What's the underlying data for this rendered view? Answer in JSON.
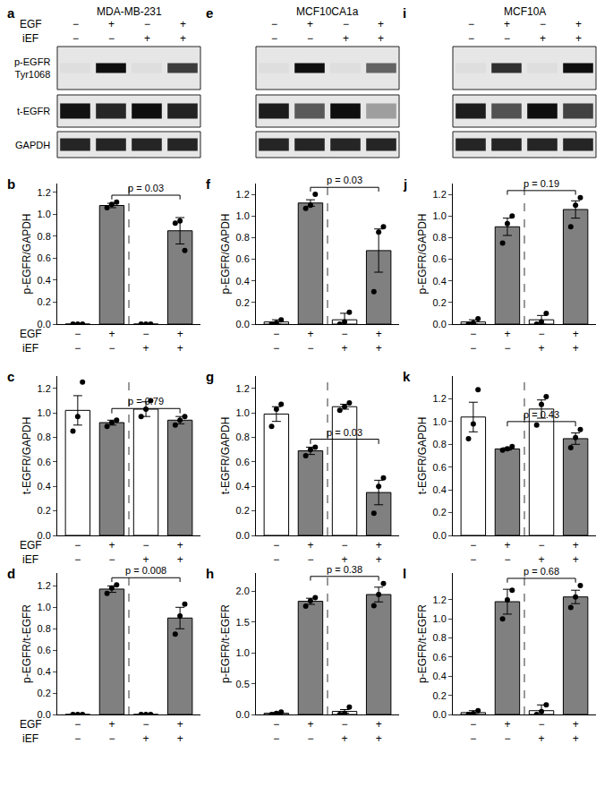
{
  "blots": [
    {
      "panel": "a",
      "title": "MDA-MB-231",
      "conditions": [
        {
          "label": "EGF",
          "values": [
            "−",
            "+",
            "−",
            "+"
          ]
        },
        {
          "label": "iEF",
          "values": [
            "−",
            "−",
            "+",
            "+"
          ]
        }
      ],
      "rows": [
        {
          "label": [
            "p-EGFR",
            "Tyr1068"
          ]
        },
        {
          "label": [
            "t-EGFR"
          ]
        },
        {
          "label": [
            "GAPDH"
          ]
        }
      ]
    },
    {
      "panel": "e",
      "title": "MCF10CA1a",
      "conditions": [
        {
          "values": [
            "−",
            "+",
            "−",
            "+"
          ]
        },
        {
          "values": [
            "−",
            "−",
            "+",
            "+"
          ]
        }
      ],
      "rows": [
        {},
        {},
        {}
      ]
    },
    {
      "panel": "i",
      "title": "MCF10A",
      "conditions": [
        {
          "values": [
            "−",
            "+",
            "−",
            "+"
          ]
        },
        {
          "values": [
            "−",
            "−",
            "+",
            "+"
          ]
        }
      ],
      "rows": [
        {},
        {},
        {}
      ]
    }
  ],
  "chart_data": [
    {
      "type": "bar",
      "panel": "b",
      "y_label": "p-EGFR/GAPDH",
      "x_rows": [
        {
          "label": "EGF",
          "values": [
            "−",
            "+",
            "−",
            "+"
          ]
        },
        {
          "label": "iEF",
          "values": [
            "−",
            "−",
            "+",
            "+"
          ]
        }
      ],
      "values": [
        0,
        1.08,
        0,
        0.85
      ],
      "errors": [
        0,
        0.02,
        0,
        0.12
      ],
      "points": [
        [
          0,
          0,
          0
        ],
        [
          1.06,
          1.09,
          1.11
        ],
        [
          0,
          0,
          0
        ],
        [
          0.92,
          0.94,
          0.67
        ]
      ],
      "colors": [
        "#ffffff",
        "#808080",
        "#ffffff",
        "#808080"
      ],
      "ylim": [
        0,
        1.28
      ],
      "yticks": [
        {
          "value": 0,
          "label": "0.0"
        },
        0.2,
        0.4,
        0.6,
        0.8,
        {
          "value": 1,
          "label": "1.0"
        },
        1.2
      ],
      "comparison": {
        "bars": [
          1,
          3
        ],
        "label": "p = 0.03"
      }
    },
    {
      "type": "bar",
      "panel": "c",
      "y_label": "t-EGFR/GAPDH",
      "x_rows": [
        {
          "label": "EGF",
          "values": [
            "−",
            "+",
            "−",
            "+"
          ]
        },
        {
          "label": "iEF",
          "values": [
            "−",
            "−",
            "+",
            "+"
          ]
        }
      ],
      "values": [
        1.02,
        0.92,
        1.03,
        0.94
      ],
      "errors": [
        0.12,
        0.02,
        0.06,
        0.03
      ],
      "points": [
        [
          0.85,
          0.97,
          1.25
        ],
        [
          0.89,
          0.92,
          0.94
        ],
        [
          0.97,
          1.03,
          1.1
        ],
        [
          0.9,
          0.94,
          0.97
        ]
      ],
      "colors": [
        "#ffffff",
        "#808080",
        "#ffffff",
        "#808080"
      ],
      "ylim": [
        0,
        1.3
      ],
      "yticks": [
        {
          "value": 0,
          "label": "0.0"
        },
        0.2,
        0.4,
        0.6,
        0.8,
        {
          "value": 1,
          "label": "1.0"
        },
        1.2
      ],
      "comparison": {
        "bars": [
          1,
          3
        ],
        "label": "p = 0.79"
      }
    },
    {
      "type": "bar",
      "panel": "d",
      "y_label": "p-EGFR/t-EGFR",
      "x_rows": [
        {
          "label": "EGF",
          "values": [
            "−",
            "+",
            "−",
            "+"
          ]
        },
        {
          "label": "iEF",
          "values": [
            "−",
            "−",
            "+",
            "+"
          ]
        }
      ],
      "values": [
        0,
        1.17,
        0,
        0.9
      ],
      "errors": [
        0,
        0.03,
        0,
        0.1
      ],
      "points": [
        [
          0,
          0,
          0
        ],
        [
          1.13,
          1.18,
          1.21
        ],
        [
          0,
          0,
          0
        ],
        [
          0.75,
          0.92,
          1.03
        ]
      ],
      "colors": [
        "#ffffff",
        "#808080",
        "#ffffff",
        "#808080"
      ],
      "ylim": [
        0,
        1.32
      ],
      "yticks": [
        {
          "value": 0,
          "label": "0.0"
        },
        0.2,
        0.4,
        0.6,
        0.8,
        {
          "value": 1,
          "label": "1.0"
        },
        1.2
      ],
      "comparison": {
        "bars": [
          1,
          3
        ],
        "label": "p = 0.008"
      }
    },
    {
      "type": "bar",
      "panel": "f",
      "y_label": "p-EGFR/GAPDH",
      "x_rows": [
        {
          "values": [
            "−",
            "+",
            "−",
            "+"
          ]
        },
        {
          "values": [
            "−",
            "−",
            "+",
            "+"
          ]
        }
      ],
      "values": [
        0.02,
        1.12,
        0.04,
        0.68
      ],
      "errors": [
        0.02,
        0.03,
        0.06,
        0.2
      ],
      "points": [
        [
          0,
          0.01,
          0.04
        ],
        [
          1.07,
          1.1,
          1.2
        ],
        [
          0,
          0.02,
          0.11
        ],
        [
          0.3,
          0.85,
          0.9
        ]
      ],
      "colors": [
        "#ffffff",
        "#808080",
        "#ffffff",
        "#808080"
      ],
      "ylim": [
        0,
        1.3
      ],
      "yticks": [
        {
          "value": 0,
          "label": "0.0"
        },
        0.2,
        0.4,
        0.6,
        0.8,
        {
          "value": 1,
          "label": "1.0"
        },
        1.2
      ],
      "comparison": {
        "bars": [
          1,
          3
        ],
        "label": "p = 0.03"
      }
    },
    {
      "type": "bar",
      "panel": "g",
      "y_label": "t-EGFR/GAPDH",
      "x_rows": [
        {
          "values": [
            "−",
            "+",
            "−",
            "+"
          ]
        },
        {
          "values": [
            "−",
            "−",
            "+",
            "+"
          ]
        }
      ],
      "values": [
        0.99,
        0.69,
        1.05,
        0.35
      ],
      "errors": [
        0.06,
        0.03,
        0.02,
        0.1
      ],
      "points": [
        [
          0.89,
          1.03,
          1.07
        ],
        [
          0.65,
          0.7,
          0.72
        ],
        [
          1.02,
          1.05,
          1.08
        ],
        [
          0.18,
          0.4,
          0.47
        ]
      ],
      "colors": [
        "#ffffff",
        "#808080",
        "#ffffff",
        "#808080"
      ],
      "ylim": [
        0,
        1.3
      ],
      "yticks": [
        {
          "value": 0,
          "label": "0.0"
        },
        0.2,
        0.4,
        0.6,
        0.8,
        {
          "value": 1,
          "label": "1.0"
        },
        1.2
      ],
      "comparison": {
        "bars": [
          1,
          3
        ],
        "label": "p = 0.03"
      }
    },
    {
      "type": "bar",
      "panel": "h",
      "y_label": "p-EGFR/t-EGFR",
      "x_rows": [
        {
          "values": [
            "−",
            "+",
            "−",
            "+"
          ]
        },
        {
          "values": [
            "−",
            "−",
            "+",
            "+"
          ]
        }
      ],
      "values": [
        0.02,
        1.84,
        0.05,
        1.95
      ],
      "errors": [
        0.01,
        0.05,
        0.03,
        0.12
      ],
      "points": [
        [
          0,
          0.02,
          0.04
        ],
        [
          1.76,
          1.85,
          1.9
        ],
        [
          0,
          0.02,
          0.12
        ],
        [
          1.77,
          1.95,
          2.13
        ]
      ],
      "colors": [
        "#ffffff",
        "#808080",
        "#ffffff",
        "#808080"
      ],
      "ylim": [
        0,
        2.3
      ],
      "yticks": [
        {
          "value": 0,
          "label": "0.0"
        },
        0.5,
        {
          "value": 1,
          "label": "1.0"
        },
        1.5,
        {
          "value": 2,
          "label": "2.0"
        }
      ],
      "comparison": {
        "bars": [
          1,
          3
        ],
        "label": "p = 0.38"
      }
    },
    {
      "type": "bar",
      "panel": "j",
      "y_label": "p-EGFR/GAPDH",
      "x_rows": [
        {
          "values": [
            "−",
            "+",
            "−",
            "+"
          ]
        },
        {
          "values": [
            "−",
            "−",
            "+",
            "+"
          ]
        }
      ],
      "values": [
        0.02,
        0.9,
        0.04,
        1.06
      ],
      "errors": [
        0.02,
        0.08,
        0.04,
        0.08
      ],
      "points": [
        [
          0,
          0.01,
          0.05
        ],
        [
          0.75,
          0.93,
          1.0
        ],
        [
          0,
          0.02,
          0.1
        ],
        [
          0.9,
          1.1,
          1.17
        ]
      ],
      "colors": [
        "#ffffff",
        "#808080",
        "#ffffff",
        "#808080"
      ],
      "ylim": [
        0,
        1.3
      ],
      "yticks": [
        {
          "value": 0,
          "label": "0.0"
        },
        0.2,
        0.4,
        0.6,
        0.8,
        {
          "value": 1,
          "label": "1.0"
        },
        1.2
      ],
      "comparison": {
        "bars": [
          1,
          3
        ],
        "label": "p = 0.19"
      }
    },
    {
      "type": "bar",
      "panel": "k",
      "y_label": "t-EGFR/GAPDH",
      "x_rows": [
        {
          "values": [
            "−",
            "+",
            "−",
            "+"
          ]
        },
        {
          "values": [
            "−",
            "−",
            "+",
            "+"
          ]
        }
      ],
      "values": [
        1.04,
        0.76,
        1.11,
        0.85
      ],
      "errors": [
        0.13,
        0.01,
        0.08,
        0.05
      ],
      "points": [
        [
          0.85,
          0.98,
          1.28
        ],
        [
          0.75,
          0.76,
          0.78
        ],
        [
          0.97,
          1.15,
          1.22
        ],
        [
          0.77,
          0.86,
          0.93
        ]
      ],
      "colors": [
        "#ffffff",
        "#808080",
        "#ffffff",
        "#808080"
      ],
      "ylim": [
        0,
        1.4
      ],
      "yticks": [
        {
          "value": 0,
          "label": "0.0"
        },
        0.2,
        0.4,
        0.6,
        0.8,
        {
          "value": 1,
          "label": "1.0"
        },
        1.2
      ],
      "comparison": {
        "bars": [
          1,
          3
        ],
        "label": "p = 0.43"
      }
    },
    {
      "type": "bar",
      "panel": "l",
      "y_label": "p-EGFR/t-EGFR",
      "x_rows": [
        {
          "values": [
            "−",
            "+",
            "−",
            "+"
          ]
        },
        {
          "values": [
            "−",
            "−",
            "+",
            "+"
          ]
        }
      ],
      "values": [
        0.02,
        1.18,
        0.04,
        1.23
      ],
      "errors": [
        0.02,
        0.13,
        0.06,
        0.07
      ],
      "points": [
        [
          0,
          0.01,
          0.04
        ],
        [
          1.0,
          1.2,
          1.3
        ],
        [
          0,
          0.03,
          0.1
        ],
        [
          1.12,
          1.23,
          1.35
        ]
      ],
      "colors": [
        "#ffffff",
        "#808080",
        "#ffffff",
        "#808080"
      ],
      "ylim": [
        0,
        1.48
      ],
      "yticks": [
        {
          "value": 0,
          "label": "0.0"
        },
        0.2,
        0.4,
        0.6,
        0.8,
        {
          "value": 1,
          "label": "1.0"
        },
        1.2
      ],
      "comparison": {
        "bars": [
          1,
          3
        ],
        "label": "p = 0.68"
      }
    }
  ]
}
